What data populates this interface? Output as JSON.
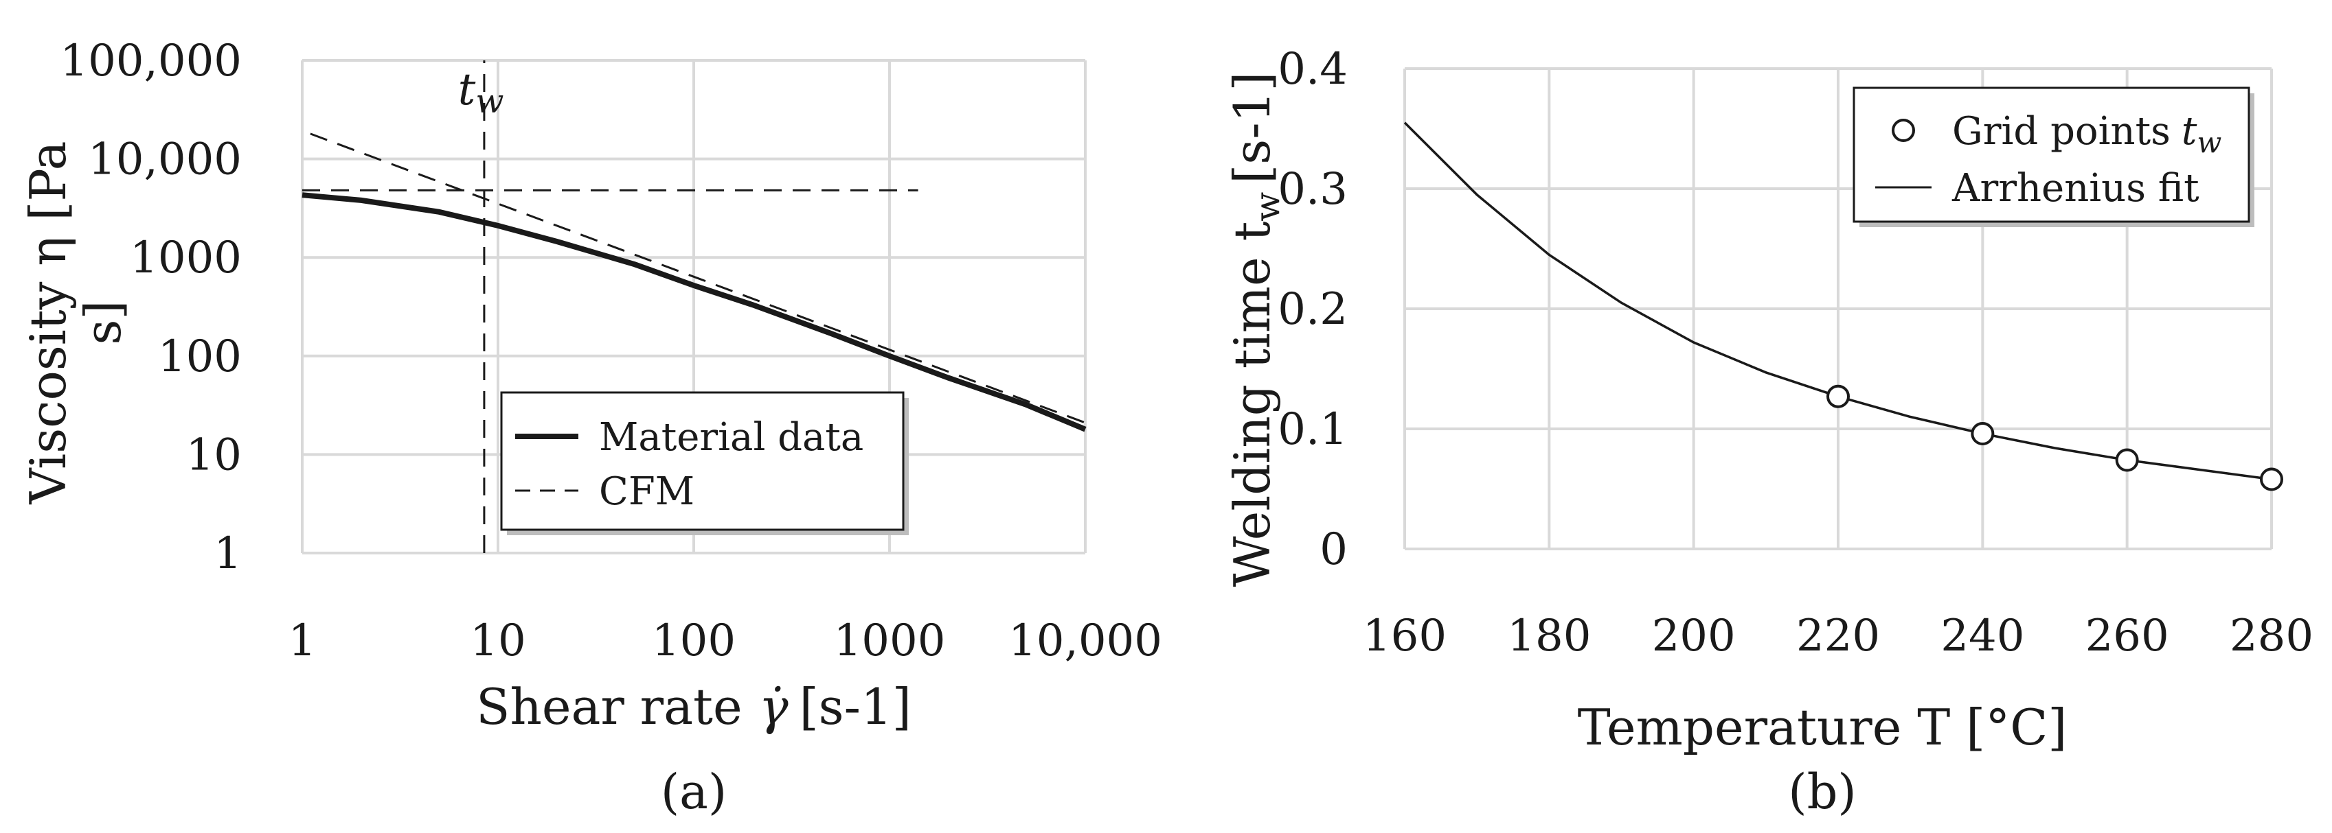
{
  "chart_data": [
    {
      "panel": "(a)",
      "type": "line",
      "x_scale": "log",
      "y_scale": "log",
      "xlabel": "Shear rate",
      "xlabel_symbol": "γ̇",
      "xlabel_unit": "[s-1]",
      "ylabel_line1": "Viscosity η [Pa",
      "ylabel_line2": "s]",
      "xlim": [
        1,
        10000
      ],
      "ylim": [
        1,
        100000
      ],
      "x_ticks": [
        "1",
        "10",
        "100",
        "1000",
        "10,000"
      ],
      "y_ticks": [
        "1",
        "10",
        "100",
        "1000",
        "10,000",
        "100,000"
      ],
      "grid": true,
      "legend_position": "bottom-center",
      "series": [
        {
          "name": "Material data",
          "style": "solid-thick",
          "x": [
            1,
            2,
            5,
            10,
            20,
            50,
            100,
            200,
            500,
            1000,
            2000,
            5000,
            10000
          ],
          "y": [
            4300,
            3800,
            2900,
            2100,
            1450,
            850,
            520,
            330,
            170,
            100,
            60,
            32,
            18
          ]
        },
        {
          "name": "CFM",
          "style": "dashed",
          "x": [
            1.1,
            10000
          ],
          "y": [
            18000,
            21
          ]
        },
        {
          "name": "",
          "style": "dashed",
          "x": [
            1,
            1400
          ],
          "y": [
            4800,
            4800
          ]
        },
        {
          "name": "",
          "style": "dashed",
          "x": [
            8.5,
            8.5
          ],
          "y": [
            1,
            100000
          ]
        }
      ],
      "annotation": {
        "text": "t",
        "subscript": "w",
        "x": 8.5
      }
    },
    {
      "panel": "(b)",
      "type": "line",
      "xlabel": "Temperature T [°C]",
      "ylabel": "Welding time t",
      "ylabel_subscript": "w",
      "ylabel_unit": "[s-1]",
      "xlim": [
        160,
        280
      ],
      "ylim": [
        0,
        0.4
      ],
      "x_ticks": [
        "160",
        "180",
        "200",
        "220",
        "240",
        "260",
        "280"
      ],
      "y_ticks": [
        "0",
        "0.1",
        "0.2",
        "0.3",
        "0.4"
      ],
      "grid": true,
      "legend_position": "top-right",
      "series": [
        {
          "name": "Grid points",
          "name_symbol": "t",
          "name_subscript": "w",
          "style": "circle-markers",
          "x": [
            220,
            240,
            260,
            280
          ],
          "y": [
            0.127,
            0.096,
            0.074,
            0.058
          ]
        },
        {
          "name": "Arrhenius fit",
          "style": "solid-thin",
          "x": [
            160,
            170,
            180,
            190,
            200,
            210,
            220,
            230,
            240,
            250,
            260,
            270,
            280
          ],
          "y": [
            0.355,
            0.295,
            0.245,
            0.205,
            0.172,
            0.147,
            0.127,
            0.11,
            0.096,
            0.084,
            0.074,
            0.066,
            0.058
          ]
        }
      ]
    }
  ]
}
